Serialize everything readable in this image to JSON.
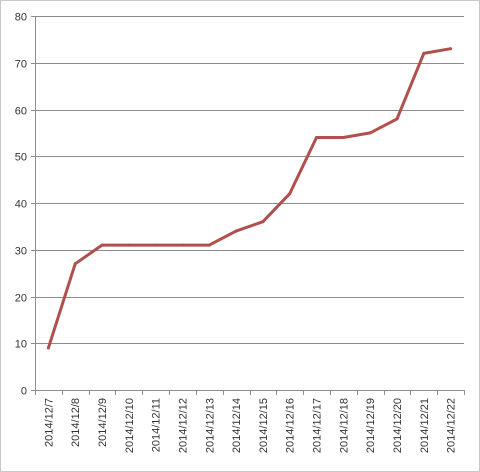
{
  "chart_data": {
    "type": "line",
    "title": "",
    "xlabel": "",
    "ylabel": "",
    "x": [
      "2014/12/7",
      "2014/12/8",
      "2014/12/9",
      "2014/12/10",
      "2014/12/11",
      "2014/12/12",
      "2014/12/13",
      "2014/12/14",
      "2014/12/15",
      "2014/12/16",
      "2014/12/17",
      "2014/12/18",
      "2014/12/19",
      "2014/12/20",
      "2014/12/21",
      "2014/12/22"
    ],
    "series": [
      {
        "values": [
          9,
          27,
          31,
          31,
          31,
          31,
          31,
          34,
          36,
          42,
          54,
          54,
          55,
          58,
          72,
          73
        ],
        "color": "#b0504d"
      }
    ],
    "ylim": [
      0,
      80
    ],
    "yticks": [
      0,
      10,
      20,
      30,
      40,
      50,
      60,
      70,
      80
    ],
    "grid": true,
    "legend": "none",
    "gridline_color": "#8c8c8c",
    "axis_color": "#8c8c8c"
  }
}
